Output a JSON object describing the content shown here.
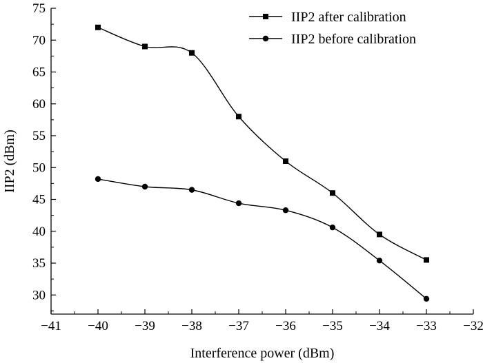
{
  "chart_data": {
    "type": "line",
    "title": "",
    "xlabel": "Interference power (dBm)",
    "ylabel": "IIP2 (dBm)",
    "xlim": [
      -41,
      -32
    ],
    "ylim": [
      27,
      75
    ],
    "x_ticks": [
      -41,
      -40,
      -39,
      -38,
      -37,
      -36,
      -35,
      -34,
      -33,
      -32
    ],
    "x_tick_labels": [
      "−41",
      "−40",
      "−39",
      "−38",
      "−37",
      "−36",
      "−35",
      "−34",
      "−33",
      "−32"
    ],
    "y_ticks": [
      30,
      35,
      40,
      45,
      50,
      55,
      60,
      65,
      70,
      75
    ],
    "y_tick_labels": [
      "30",
      "35",
      "40",
      "45",
      "50",
      "55",
      "60",
      "65",
      "70",
      "75"
    ],
    "grid": false,
    "legend_position": "top-right",
    "x": [
      -40,
      -39,
      -38,
      -37,
      -36,
      -35,
      -34,
      -33
    ],
    "series": [
      {
        "name": "IIP2 after calibration",
        "marker": "square",
        "values": [
          72.0,
          69.0,
          68.0,
          58.0,
          51.0,
          46.0,
          39.5,
          35.5
        ]
      },
      {
        "name": "IIP2 before calibration",
        "marker": "circle",
        "values": [
          48.2,
          47.0,
          46.5,
          44.4,
          43.3,
          40.6,
          35.4,
          29.4
        ]
      }
    ]
  }
}
